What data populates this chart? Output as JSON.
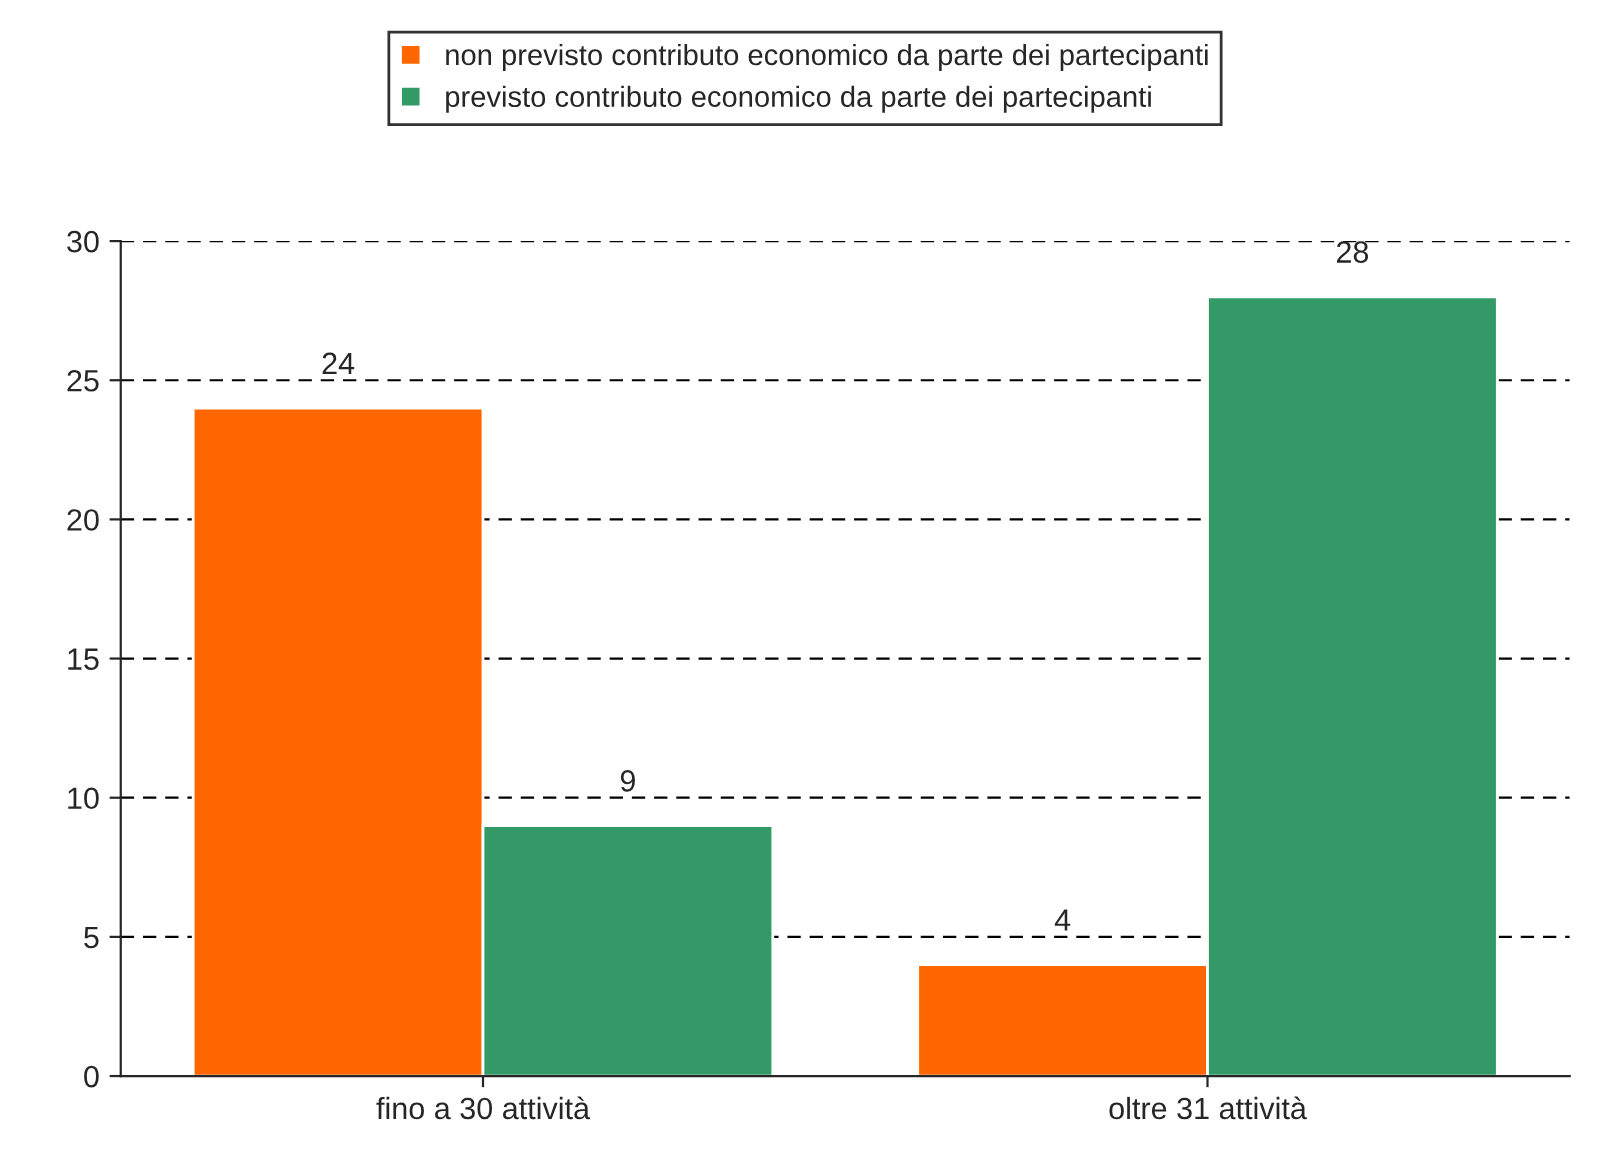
{
  "chart_data": {
    "type": "bar",
    "categories": [
      "fino a 30 attività",
      "oltre 31 attività"
    ],
    "series": [
      {
        "name": "non previsto contributo economico da parte dei partecipanti",
        "color": "#ff6600",
        "values": [
          24,
          4
        ]
      },
      {
        "name": "previsto contributo economico da parte dei partecipanti",
        "color": "#339966",
        "values": [
          9,
          28
        ]
      }
    ],
    "ylim": [
      0,
      30
    ],
    "yticks": [
      0,
      5,
      10,
      15,
      20,
      25,
      30
    ],
    "grid": "y",
    "legend": "top",
    "data_labels": true
  }
}
